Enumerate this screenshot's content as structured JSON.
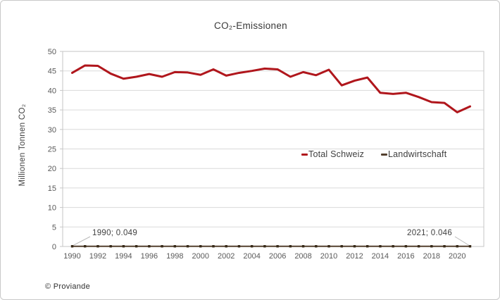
{
  "footer": {
    "copyright": "© Proviande"
  },
  "chart_data": {
    "type": "line",
    "title": "CO₂-Emissionen",
    "xlabel": "",
    "ylabel": "Millionen Tonnen CO₂",
    "ylim": [
      0,
      50
    ],
    "y_ticks": [
      0,
      5,
      10,
      15,
      20,
      25,
      30,
      35,
      40,
      45,
      50
    ],
    "grid": true,
    "legend_position": "inside-center-right",
    "x": [
      1990,
      1991,
      1992,
      1993,
      1994,
      1995,
      1996,
      1997,
      1998,
      1999,
      2000,
      2001,
      2002,
      2003,
      2004,
      2005,
      2006,
      2007,
      2008,
      2009,
      2010,
      2011,
      2012,
      2013,
      2014,
      2015,
      2016,
      2017,
      2018,
      2019,
      2020,
      2021
    ],
    "x_tick_labels": [
      "1990",
      "1992",
      "1994",
      "1996",
      "1998",
      "2000",
      "2002",
      "2004",
      "2006",
      "2008",
      "2010",
      "2012",
      "2014",
      "2016",
      "2018",
      "2020"
    ],
    "series": [
      {
        "name": "Total Schweiz",
        "color": "#b0161c",
        "values": [
          44.5,
          46.4,
          46.3,
          44.3,
          43.0,
          43.5,
          44.2,
          43.5,
          44.7,
          44.6,
          44.0,
          45.4,
          43.8,
          44.5,
          45.0,
          45.6,
          45.4,
          43.5,
          44.7,
          43.9,
          45.3,
          41.3,
          42.5,
          43.3,
          39.4,
          39.1,
          39.4,
          38.3,
          37.0,
          36.8,
          34.4,
          35.9
        ]
      },
      {
        "name": "Landwirtschaft",
        "color": "#54402e",
        "marker_color": "#362817",
        "values": [
          0.049,
          0.05,
          0.05,
          0.05,
          0.05,
          0.05,
          0.05,
          0.05,
          0.05,
          0.05,
          0.05,
          0.05,
          0.05,
          0.05,
          0.05,
          0.05,
          0.05,
          0.05,
          0.05,
          0.05,
          0.05,
          0.05,
          0.05,
          0.05,
          0.05,
          0.05,
          0.05,
          0.05,
          0.05,
          0.05,
          0.05,
          0.046
        ]
      }
    ],
    "annotations": [
      {
        "text": "1990; 0.049",
        "year": 1990,
        "value": 0.049
      },
      {
        "text": "2021; 0.046",
        "year": 2021,
        "value": 0.046
      }
    ]
  }
}
